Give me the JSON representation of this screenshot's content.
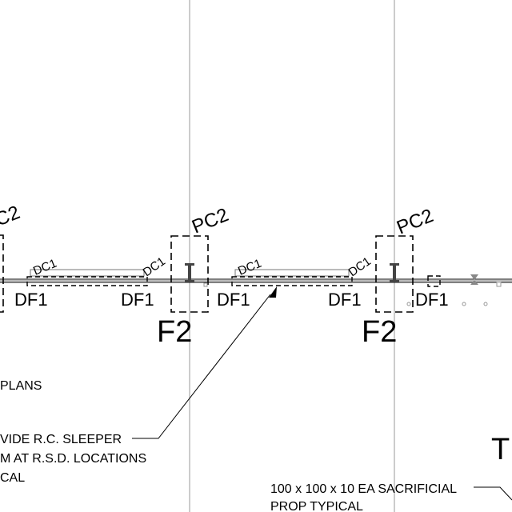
{
  "drawing": {
    "pad_labels": {
      "pc2": "PC2",
      "pc2_partial": "C2",
      "f2": "F2",
      "df1": "DF1",
      "dc1": "DC1"
    },
    "notes": {
      "plans": "PLANS",
      "sleeper_line1": "VIDE R.C. SLEEPER",
      "sleeper_line2": "M AT R.S.D. LOCATIONS",
      "sleeper_line3": "CAL",
      "prop_line1": "100 x 100 x 10 EA SACRIFICIAL",
      "prop_line2": "PROP TYPICAL",
      "partial_right": "TI"
    }
  }
}
